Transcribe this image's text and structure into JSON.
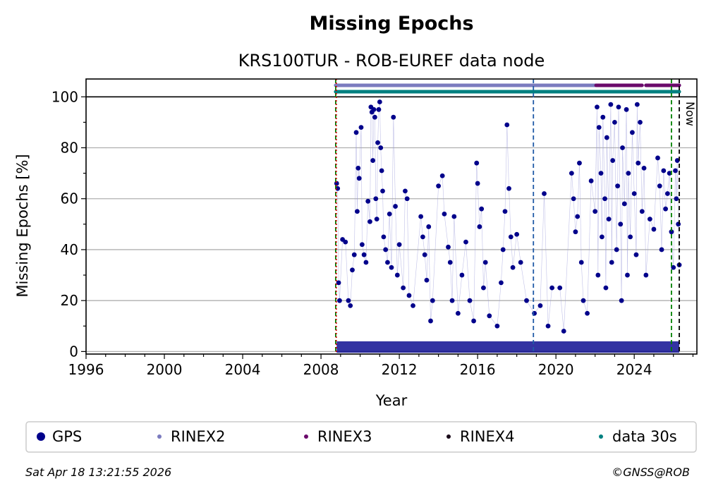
{
  "chart_data": {
    "type": "scatter",
    "title": "Missing Epochs",
    "subtitle": "KRS100TUR - ROB-EUREF data node",
    "xlabel": "Year",
    "ylabel": "Missing Epochs [%]",
    "xlim": [
      1996,
      2027.2
    ],
    "ylim": [
      -1,
      107
    ],
    "x_ticks": [
      1996,
      2000,
      2004,
      2008,
      2012,
      2016,
      2020,
      2024
    ],
    "y_ticks": [
      0,
      20,
      40,
      60,
      80,
      100
    ],
    "grid": "horizontal",
    "vlines": [
      {
        "x": 2008.75,
        "color": "#008000",
        "style": "dashed"
      },
      {
        "x": 2008.78,
        "color": "#cc0000",
        "style": "dotted"
      },
      {
        "x": 2018.85,
        "color": "#1f5aa6",
        "style": "dashed"
      },
      {
        "x": 2025.9,
        "color": "#008000",
        "style": "dashed"
      },
      {
        "x": 2026.3,
        "color": "#000000",
        "style": "dashed"
      }
    ],
    "now_label": "Now",
    "bands": [
      {
        "name": "RINEX2",
        "color": "#7b7bbf",
        "y": 104.5,
        "ranges": [
          [
            2008.75,
            2022.05
          ],
          [
            2024.6,
            2026.3
          ]
        ]
      },
      {
        "name": "RINEX3",
        "color": "#6b0a6b",
        "y": 104.5,
        "ranges": [
          [
            2022.05,
            2024.4
          ],
          [
            2024.6,
            2026.3
          ]
        ]
      },
      {
        "name": "data 30s",
        "color": "#008080",
        "y": 102,
        "ranges": [
          [
            2008.75,
            2026.3
          ]
        ]
      }
    ],
    "series": [
      {
        "name": "GPS",
        "color": "#00008b",
        "points": [
          [
            2008.8,
            66
          ],
          [
            2008.85,
            64
          ],
          [
            2008.9,
            27
          ],
          [
            2008.95,
            20
          ],
          [
            2009.1,
            44
          ],
          [
            2009.25,
            43
          ],
          [
            2009.4,
            20
          ],
          [
            2009.5,
            18
          ],
          [
            2009.6,
            32
          ],
          [
            2009.7,
            38
          ],
          [
            2009.8,
            86
          ],
          [
            2009.85,
            55
          ],
          [
            2009.9,
            72
          ],
          [
            2009.95,
            68
          ],
          [
            2010.05,
            88
          ],
          [
            2010.1,
            42
          ],
          [
            2010.2,
            38
          ],
          [
            2010.3,
            35
          ],
          [
            2010.4,
            59
          ],
          [
            2010.5,
            51
          ],
          [
            2010.55,
            96
          ],
          [
            2010.6,
            94
          ],
          [
            2010.65,
            75
          ],
          [
            2010.7,
            95
          ],
          [
            2010.75,
            92
          ],
          [
            2010.8,
            60
          ],
          [
            2010.85,
            52
          ],
          [
            2010.9,
            82
          ],
          [
            2010.95,
            95
          ],
          [
            2011.0,
            98
          ],
          [
            2011.05,
            80
          ],
          [
            2011.1,
            71
          ],
          [
            2011.15,
            63
          ],
          [
            2011.2,
            45
          ],
          [
            2011.3,
            40
          ],
          [
            2011.4,
            35
          ],
          [
            2011.5,
            54
          ],
          [
            2011.6,
            33
          ],
          [
            2011.7,
            92
          ],
          [
            2011.8,
            57
          ],
          [
            2011.9,
            30
          ],
          [
            2012.0,
            42
          ],
          [
            2012.2,
            25
          ],
          [
            2012.3,
            63
          ],
          [
            2012.4,
            60
          ],
          [
            2012.5,
            22
          ],
          [
            2012.7,
            18
          ],
          [
            2013.1,
            53
          ],
          [
            2013.2,
            45
          ],
          [
            2013.3,
            38
          ],
          [
            2013.4,
            28
          ],
          [
            2013.5,
            49
          ],
          [
            2013.6,
            12
          ],
          [
            2013.7,
            20
          ],
          [
            2014.0,
            65
          ],
          [
            2014.2,
            69
          ],
          [
            2014.3,
            54
          ],
          [
            2014.5,
            41
          ],
          [
            2014.6,
            35
          ],
          [
            2014.7,
            20
          ],
          [
            2014.8,
            53
          ],
          [
            2015.0,
            15
          ],
          [
            2015.2,
            30
          ],
          [
            2015.4,
            43
          ],
          [
            2015.6,
            20
          ],
          [
            2015.8,
            12
          ],
          [
            2015.95,
            74
          ],
          [
            2016.0,
            66
          ],
          [
            2016.1,
            49
          ],
          [
            2016.2,
            56
          ],
          [
            2016.3,
            25
          ],
          [
            2016.4,
            35
          ],
          [
            2016.6,
            14
          ],
          [
            2017.0,
            10
          ],
          [
            2017.2,
            27
          ],
          [
            2017.3,
            40
          ],
          [
            2017.4,
            55
          ],
          [
            2017.5,
            89
          ],
          [
            2017.6,
            64
          ],
          [
            2017.7,
            45
          ],
          [
            2017.8,
            33
          ],
          [
            2018.0,
            46
          ],
          [
            2018.2,
            35
          ],
          [
            2018.5,
            20
          ],
          [
            2018.9,
            15
          ],
          [
            2019.2,
            18
          ],
          [
            2019.4,
            62
          ],
          [
            2019.6,
            10
          ],
          [
            2019.8,
            25
          ],
          [
            2020.2,
            25
          ],
          [
            2020.4,
            8
          ],
          [
            2020.8,
            70
          ],
          [
            2020.9,
            60
          ],
          [
            2021.0,
            47
          ],
          [
            2021.1,
            53
          ],
          [
            2021.2,
            74
          ],
          [
            2021.3,
            35
          ],
          [
            2021.4,
            20
          ],
          [
            2021.6,
            15
          ],
          [
            2021.8,
            67
          ],
          [
            2022.0,
            55
          ],
          [
            2022.1,
            96
          ],
          [
            2022.15,
            30
          ],
          [
            2022.2,
            88
          ],
          [
            2022.3,
            70
          ],
          [
            2022.35,
            45
          ],
          [
            2022.4,
            92
          ],
          [
            2022.5,
            60
          ],
          [
            2022.55,
            25
          ],
          [
            2022.6,
            84
          ],
          [
            2022.7,
            52
          ],
          [
            2022.8,
            97
          ],
          [
            2022.85,
            35
          ],
          [
            2022.9,
            75
          ],
          [
            2023.0,
            90
          ],
          [
            2023.1,
            40
          ],
          [
            2023.15,
            65
          ],
          [
            2023.2,
            96
          ],
          [
            2023.3,
            50
          ],
          [
            2023.35,
            20
          ],
          [
            2023.4,
            80
          ],
          [
            2023.5,
            58
          ],
          [
            2023.6,
            95
          ],
          [
            2023.65,
            30
          ],
          [
            2023.7,
            70
          ],
          [
            2023.8,
            45
          ],
          [
            2023.9,
            86
          ],
          [
            2024.0,
            62
          ],
          [
            2024.1,
            38
          ],
          [
            2024.15,
            97
          ],
          [
            2024.2,
            74
          ],
          [
            2024.3,
            90
          ],
          [
            2024.4,
            55
          ],
          [
            2024.5,
            72
          ],
          [
            2024.6,
            30
          ],
          [
            2024.8,
            52
          ],
          [
            2025.0,
            48
          ],
          [
            2025.2,
            76
          ],
          [
            2025.3,
            65
          ],
          [
            2025.4,
            40
          ],
          [
            2025.5,
            71
          ],
          [
            2025.6,
            56
          ],
          [
            2025.7,
            62
          ],
          [
            2025.8,
            70
          ],
          [
            2025.9,
            47
          ],
          [
            2026.0,
            33
          ],
          [
            2026.1,
            71
          ],
          [
            2026.15,
            60
          ],
          [
            2026.2,
            75
          ],
          [
            2026.25,
            50
          ],
          [
            2026.3,
            34
          ]
        ]
      }
    ],
    "legend": {
      "placement": "bottom",
      "entries": [
        {
          "label": "GPS",
          "color": "#00008b",
          "marker": "large"
        },
        {
          "label": "RINEX2",
          "color": "#7b7bbf",
          "marker": "small"
        },
        {
          "label": "RINEX3",
          "color": "#6b0a6b",
          "marker": "small"
        },
        {
          "label": "RINEX4",
          "color": "#1a0a1a",
          "marker": "small"
        },
        {
          "label": "data 30s",
          "color": "#008080",
          "marker": "small"
        }
      ]
    }
  },
  "footer": {
    "timestamp": "Sat Apr 18 13:21:55 2026",
    "credit": "©GNSS@ROB"
  }
}
